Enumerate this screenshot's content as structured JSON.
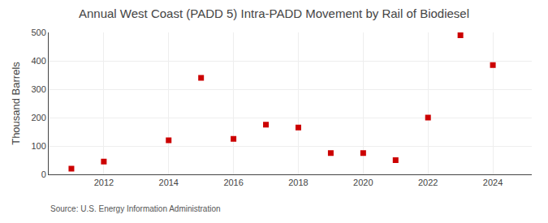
{
  "chart_data": {
    "type": "scatter",
    "title": "Annual West Coast (PADD 5) Intra-PADD Movement by Rail of Biodiesel",
    "ylabel": "Thousand Barrels",
    "annotation": "Source: U.S. Energy Information Administration",
    "x": [
      2011,
      2012,
      2014,
      2015,
      2016,
      2017,
      2018,
      2019,
      2020,
      2021,
      2022,
      2023,
      2024
    ],
    "values": [
      20,
      45,
      120,
      340,
      125,
      175,
      165,
      75,
      75,
      50,
      200,
      490,
      385
    ],
    "color": "#cc0000",
    "marker": "square",
    "xlim": [
      2010.3,
      2025.2
    ],
    "ylim": [
      0,
      500
    ],
    "xticks": [
      2012,
      2014,
      2016,
      2018,
      2020,
      2022,
      2024
    ],
    "yticks": [
      0,
      100,
      200,
      300,
      400,
      500
    ],
    "grid": true
  }
}
